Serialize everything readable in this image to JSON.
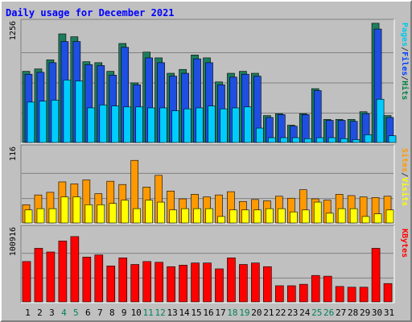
{
  "chart_data": {
    "type": "bar",
    "title": "Daily usage for December 2021",
    "days": [
      "1",
      "2",
      "3",
      "4",
      "5",
      "6",
      "7",
      "8",
      "9",
      "10",
      "11",
      "12",
      "13",
      "14",
      "15",
      "16",
      "17",
      "18",
      "19",
      "20",
      "21",
      "22",
      "23",
      "24",
      "25",
      "26",
      "27",
      "28",
      "29",
      "30",
      "31"
    ],
    "weekend_days": [
      "4",
      "5",
      "11",
      "12",
      "18",
      "19",
      "25",
      "26"
    ],
    "panels": [
      {
        "id": "hits",
        "ymax": 1256,
        "ymax_label": "1256",
        "axis_label_parts": [
          "Pages",
          "/",
          "Files",
          "/",
          "Hits"
        ],
        "axis_label_colors": [
          "#00c8e8",
          "#404040",
          "#0040ff",
          "#404040",
          "#008040"
        ],
        "series": [
          {
            "name": "Hits",
            "color": "#1c7d5c",
            "values": [
              740,
              765,
              860,
              1130,
              1100,
              840,
              830,
              740,
              1030,
              620,
              940,
              880,
              720,
              760,
              910,
              880,
              630,
              720,
              740,
              720,
              280,
              300,
              180,
              300,
              560,
              240,
              240,
              240,
              320,
              1240,
              280
            ]
          },
          {
            "name": "Files",
            "color": "#1e4fe0",
            "values": [
              710,
              730,
              830,
              1050,
              1050,
              810,
              800,
              700,
              990,
              600,
              880,
              830,
              690,
              720,
              870,
              830,
              600,
              680,
              710,
              690,
              260,
              290,
              170,
              290,
              540,
              230,
              230,
              220,
              300,
              1180,
              260
            ]
          },
          {
            "name": "Pages",
            "color": "#00ccff",
            "values": [
              420,
              430,
              440,
              650,
              640,
              360,
              390,
              380,
              370,
              370,
              360,
              360,
              330,
              350,
              360,
              380,
              350,
              360,
              370,
              150,
              50,
              50,
              50,
              40,
              50,
              50,
              40,
              30,
              80,
              450,
              70
            ]
          }
        ]
      },
      {
        "id": "visits",
        "ymax": 116,
        "ymax_label": "116",
        "axis_label_parts": [
          "Sites",
          "/",
          "Visits"
        ],
        "axis_label_colors": [
          "#ff9900",
          "#404040",
          "#ffff00"
        ],
        "series": [
          {
            "name": "Visits",
            "color": "#ff9900",
            "values": [
              28,
              43,
              47,
              63,
              60,
              66,
              45,
              64,
              59,
              96,
              55,
              73,
              49,
              37,
              44,
              40,
              43,
              48,
              33,
              36,
              34,
              41,
              38,
              51,
              37,
              35,
              44,
              42,
              40,
              39,
              41
            ]
          },
          {
            "name": "Sites",
            "color": "#ffff00",
            "values": [
              20,
              22,
              22,
              40,
              40,
              28,
              28,
              30,
              35,
              22,
              35,
              32,
              20,
              22,
              22,
              22,
              10,
              20,
              20,
              20,
              22,
              22,
              17,
              20,
              32,
              15,
              22,
              22,
              10,
              14,
              20
            ]
          }
        ]
      },
      {
        "id": "kbytes",
        "ymax": 100916,
        "ymax_label": "100916",
        "axis_label_parts": [
          "KBytes"
        ],
        "axis_label_colors": [
          "#ff0000"
        ],
        "series": [
          {
            "name": "KBytes",
            "color": "#ff0000",
            "values": [
              55000,
              73000,
              68000,
              83000,
              89000,
              61000,
              64000,
              49000,
              60000,
              51000,
              55000,
              54000,
              48000,
              50000,
              53000,
              53000,
              45000,
              60000,
              51000,
              53000,
              48000,
              22000,
              22000,
              24000,
              36000,
              35000,
              21000,
              20000,
              20000,
              73000,
              25000
            ]
          }
        ]
      }
    ]
  },
  "colors": {
    "background": "#c0c0c0",
    "plot": "#c0c0c0",
    "grid": "#808080",
    "title": "#0000ff",
    "weekday_label": "#000000",
    "weekend_label": "#00805c"
  }
}
